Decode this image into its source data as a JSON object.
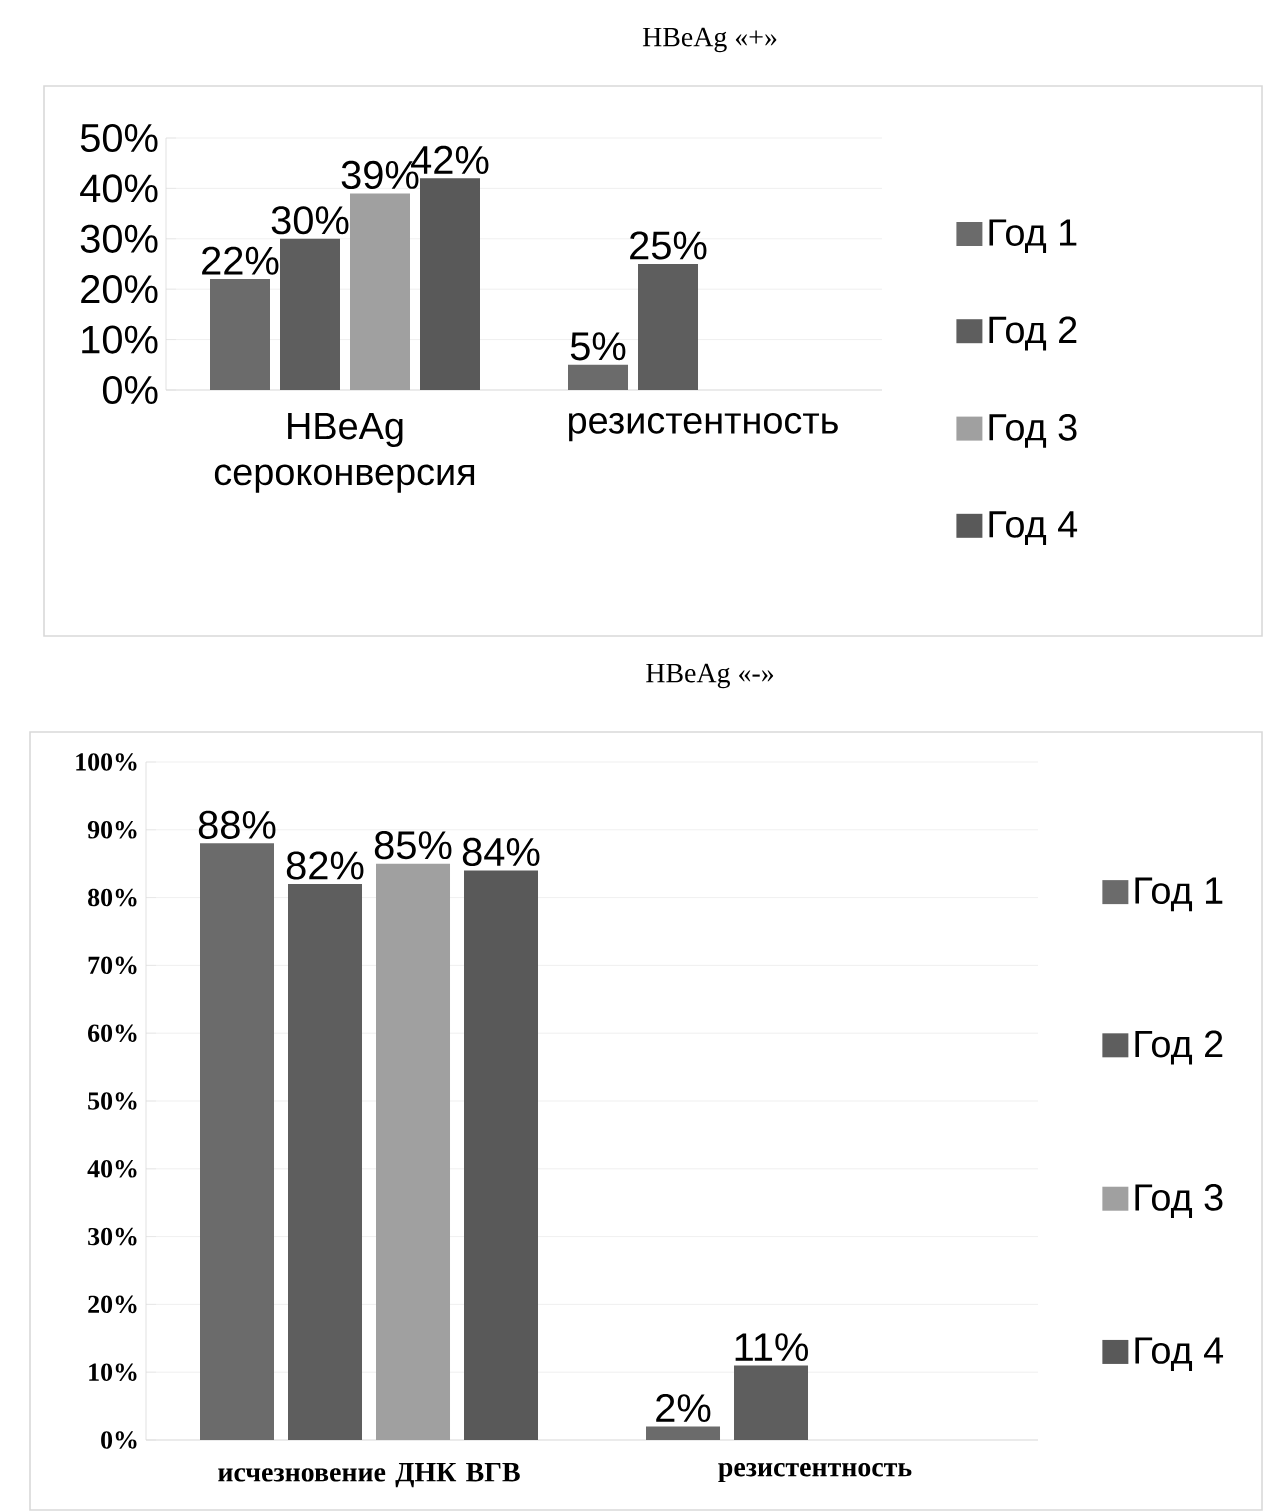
{
  "chart_data": [
    {
      "type": "bar",
      "title": "HBeAg «+»",
      "categories": [
        "HBeAg сероконверсия",
        "резистентность"
      ],
      "series": [
        {
          "name": "Год 1",
          "color": "#6b6b6b",
          "values": [
            22,
            5
          ],
          "value_labels": [
            "22%",
            "5%"
          ]
        },
        {
          "name": "Год 2",
          "color": "#5e5e5e",
          "values": [
            30,
            25
          ],
          "value_labels": [
            "30%",
            "25%"
          ]
        },
        {
          "name": "Год 3",
          "color": "#a0a0a0",
          "values": [
            39,
            null
          ],
          "value_labels": [
            "39%",
            null
          ]
        },
        {
          "name": "Год 4",
          "color": "#595959",
          "values": [
            42,
            null
          ],
          "value_labels": [
            "42%",
            null
          ]
        }
      ],
      "ylim": [
        0,
        50
      ],
      "yticks": [
        {
          "value": 0,
          "label": "0%"
        },
        {
          "value": 10,
          "label": "10%"
        },
        {
          "value": 20,
          "label": "20%"
        },
        {
          "value": 30,
          "label": "30%"
        },
        {
          "value": 40,
          "label": "40%"
        },
        {
          "value": 50,
          "label": "50%"
        }
      ],
      "grid": "y",
      "legend": "right"
    },
    {
      "type": "bar",
      "title": "HBeAg «-»",
      "categories": [
        "исчезновение ДНК ВГВ",
        "резистентность"
      ],
      "series": [
        {
          "name": "Год 1",
          "color": "#6b6b6b",
          "values": [
            88,
            2
          ],
          "value_labels": [
            "88%",
            "2%"
          ]
        },
        {
          "name": "Год 2",
          "color": "#5e5e5e",
          "values": [
            82,
            11
          ],
          "value_labels": [
            "82%",
            "11%"
          ]
        },
        {
          "name": "Год 3",
          "color": "#a0a0a0",
          "values": [
            85,
            null
          ],
          "value_labels": [
            "85%",
            null
          ]
        },
        {
          "name": "Год 4",
          "color": "#595959",
          "values": [
            84,
            null
          ],
          "value_labels": [
            "84%",
            null
          ]
        }
      ],
      "ylim": [
        0,
        100
      ],
      "yticks": [
        {
          "value": 0,
          "label": "0%"
        },
        {
          "value": 10,
          "label": "10%"
        },
        {
          "value": 20,
          "label": "20%"
        },
        {
          "value": 30,
          "label": "30%"
        },
        {
          "value": 40,
          "label": "40%"
        },
        {
          "value": 50,
          "label": "50%"
        },
        {
          "value": 60,
          "label": "60%"
        },
        {
          "value": 70,
          "label": "70%"
        },
        {
          "value": 80,
          "label": "80%"
        },
        {
          "value": 90,
          "label": "90%"
        },
        {
          "value": 100,
          "label": "100%"
        }
      ],
      "grid": "y",
      "legend": "right"
    }
  ]
}
